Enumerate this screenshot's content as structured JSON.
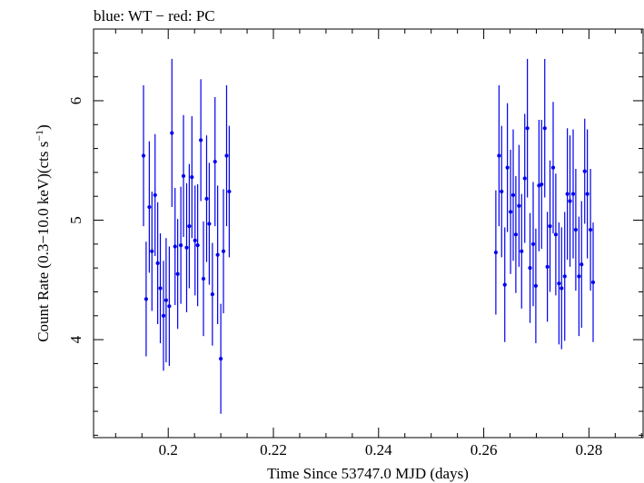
{
  "chart_data": {
    "type": "scatter",
    "title": "blue: WT − red: PC",
    "xlabel": "Time Since 53747.0 MJD (days)",
    "ylabel_main": "Count Rate (0.3−10.0 keV)(cts s",
    "ylabel_sup": "−1",
    "ylabel_end": ")",
    "xlim": [
      0.1858,
      0.2903
    ],
    "ylim": [
      3.18,
      6.6
    ],
    "x_major_ticks": [
      0.2,
      0.22,
      0.24,
      0.26,
      0.28
    ],
    "x_tick_labels": [
      "0.2",
      "0.22",
      "0.24",
      "0.26",
      "0.28"
    ],
    "x_minor_step": 0.005,
    "y_major_ticks": [
      4,
      5,
      6
    ],
    "y_tick_labels": [
      "4",
      "5",
      "6"
    ],
    "y_minor_step": 0.2,
    "grid": false,
    "series": [
      {
        "color": "#0000ee",
        "x": [
          0.1953,
          0.1958,
          0.1964,
          0.1969,
          0.1975,
          0.198,
          0.1985,
          0.1991,
          0.1996,
          0.2002,
          0.2007,
          0.2013,
          0.2018,
          0.2024,
          0.2029,
          0.2035,
          0.204,
          0.2045,
          0.2051,
          0.2056,
          0.2062,
          0.2067,
          0.2073,
          0.2078,
          0.2084,
          0.2089,
          0.2094,
          0.21,
          0.2105,
          0.2111,
          0.2116,
          0.2623,
          0.2629,
          0.2634,
          0.264,
          0.2645,
          0.2651,
          0.2656,
          0.2661,
          0.2667,
          0.2672,
          0.2678,
          0.2683,
          0.2688,
          0.2694,
          0.2699,
          0.2705,
          0.271,
          0.2716,
          0.2721,
          0.2726,
          0.2732,
          0.2737,
          0.2743,
          0.2748,
          0.2754,
          0.2759,
          0.2764,
          0.277,
          0.2775,
          0.2781,
          0.2786,
          0.2792,
          0.2797,
          0.2803,
          0.2808
        ],
        "y": [
          5.54,
          4.34,
          5.11,
          4.74,
          5.21,
          4.64,
          4.43,
          4.2,
          4.33,
          4.28,
          5.73,
          4.78,
          4.55,
          4.79,
          5.37,
          4.77,
          4.95,
          5.36,
          4.83,
          4.79,
          5.67,
          4.51,
          5.18,
          4.97,
          4.38,
          5.49,
          4.71,
          3.84,
          4.74,
          5.54,
          5.24,
          4.73,
          5.54,
          5.24,
          4.46,
          5.44,
          5.07,
          5.21,
          4.88,
          5.12,
          4.74,
          5.35,
          5.77,
          4.6,
          4.8,
          4.45,
          5.29,
          5.3,
          5.77,
          4.61,
          4.95,
          5.44,
          4.88,
          4.47,
          4.43,
          4.53,
          5.22,
          5.16,
          5.22,
          4.92,
          4.53,
          4.63,
          5.41,
          5.22,
          4.92,
          4.48
        ],
        "err": [
          0.59,
          0.48,
          0.55,
          0.5,
          0.51,
          0.51,
          0.46,
          0.46,
          0.52,
          0.5,
          0.62,
          0.49,
          0.46,
          0.49,
          0.51,
          0.54,
          0.52,
          0.51,
          0.46,
          0.51,
          0.51,
          0.48,
          0.53,
          0.51,
          0.43,
          0.54,
          0.58,
          0.46,
          0.52,
          0.59,
          0.55,
          0.52,
          0.59,
          0.55,
          0.48,
          0.54,
          0.52,
          0.55,
          0.49,
          0.51,
          0.48,
          0.54,
          0.58,
          0.46,
          0.52,
          0.48,
          0.55,
          0.54,
          0.58,
          0.46,
          0.55,
          0.55,
          0.51,
          0.51,
          0.51,
          0.54,
          0.55,
          0.55,
          0.54,
          0.51,
          0.5,
          0.53,
          0.44,
          0.54,
          0.51,
          0.5
        ]
      }
    ]
  }
}
